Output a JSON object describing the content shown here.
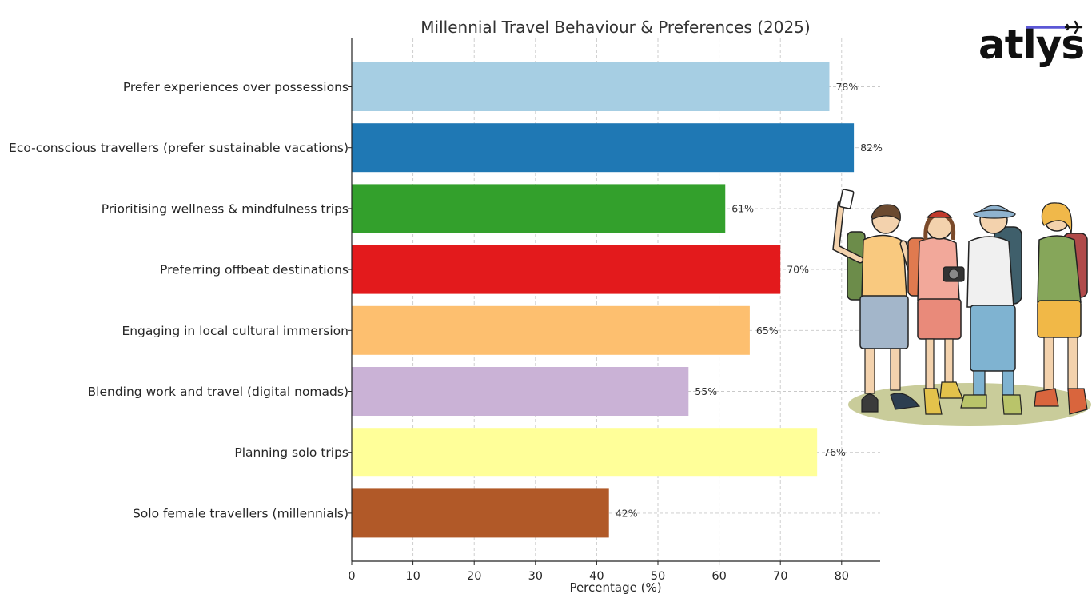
{
  "brand": {
    "logo_text": "atlys",
    "accent_color": "#5b57d6"
  },
  "chart_data": {
    "type": "bar",
    "orientation": "horizontal",
    "title": "Millennial Travel Behaviour & Preferences (2025)",
    "xlabel": "Percentage (%)",
    "ylabel": "",
    "xlim": [
      0,
      86
    ],
    "xticks": [
      "0",
      "10",
      "20",
      "30",
      "40",
      "50",
      "60",
      "70",
      "80"
    ],
    "grid": true,
    "categories": [
      "Prefer experiences over possessions",
      "Eco-conscious travellers (prefer sustainable vacations)",
      "Prioritising wellness & mindfulness trips",
      "Preferring offbeat destinations",
      "Engaging in local cultural immersion",
      "Blending work and travel (digital nomads)",
      "Planning solo trips",
      "Solo female travellers (millennials)"
    ],
    "values": [
      78,
      82,
      61,
      70,
      65,
      55,
      76,
      42
    ],
    "value_labels": [
      "78%",
      "82%",
      "61%",
      "70%",
      "65%",
      "55%",
      "76%",
      "42%"
    ],
    "colors": [
      "#a6cee3",
      "#1f78b4",
      "#33a02c",
      "#e31a1c",
      "#fdbf6f",
      "#cab2d6",
      "#ffff99",
      "#b15928"
    ]
  },
  "illustration": {
    "icon": "group-of-backpack-travellers-illustration"
  }
}
